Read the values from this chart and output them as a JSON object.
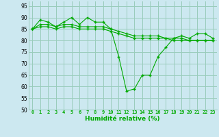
{
  "xlabel": "Humidité relative (%)",
  "background_color": "#cce8f0",
  "grid_color": "#99ccbb",
  "line_color": "#00aa00",
  "xlim": [
    -0.5,
    23.5
  ],
  "ylim": [
    50,
    97
  ],
  "yticks": [
    50,
    55,
    60,
    65,
    70,
    75,
    80,
    85,
    90,
    95
  ],
  "xticks": [
    0,
    1,
    2,
    3,
    4,
    5,
    6,
    7,
    8,
    9,
    10,
    11,
    12,
    13,
    14,
    15,
    16,
    17,
    18,
    19,
    20,
    21,
    22,
    23
  ],
  "series": [
    [
      85,
      89,
      88,
      86,
      88,
      90,
      87,
      90,
      88,
      88,
      85,
      73,
      58,
      59,
      65,
      65,
      73,
      77,
      81,
      82,
      81,
      83,
      83,
      81
    ],
    [
      85,
      87,
      87,
      86,
      87,
      87,
      86,
      86,
      86,
      86,
      85,
      84,
      83,
      82,
      82,
      82,
      82,
      81,
      81,
      81,
      80,
      80,
      80,
      80
    ],
    [
      85,
      86,
      86,
      85,
      86,
      86,
      85,
      85,
      85,
      85,
      84,
      83,
      82,
      81,
      81,
      81,
      81,
      81,
      80,
      80,
      80,
      80,
      80,
      80
    ]
  ]
}
